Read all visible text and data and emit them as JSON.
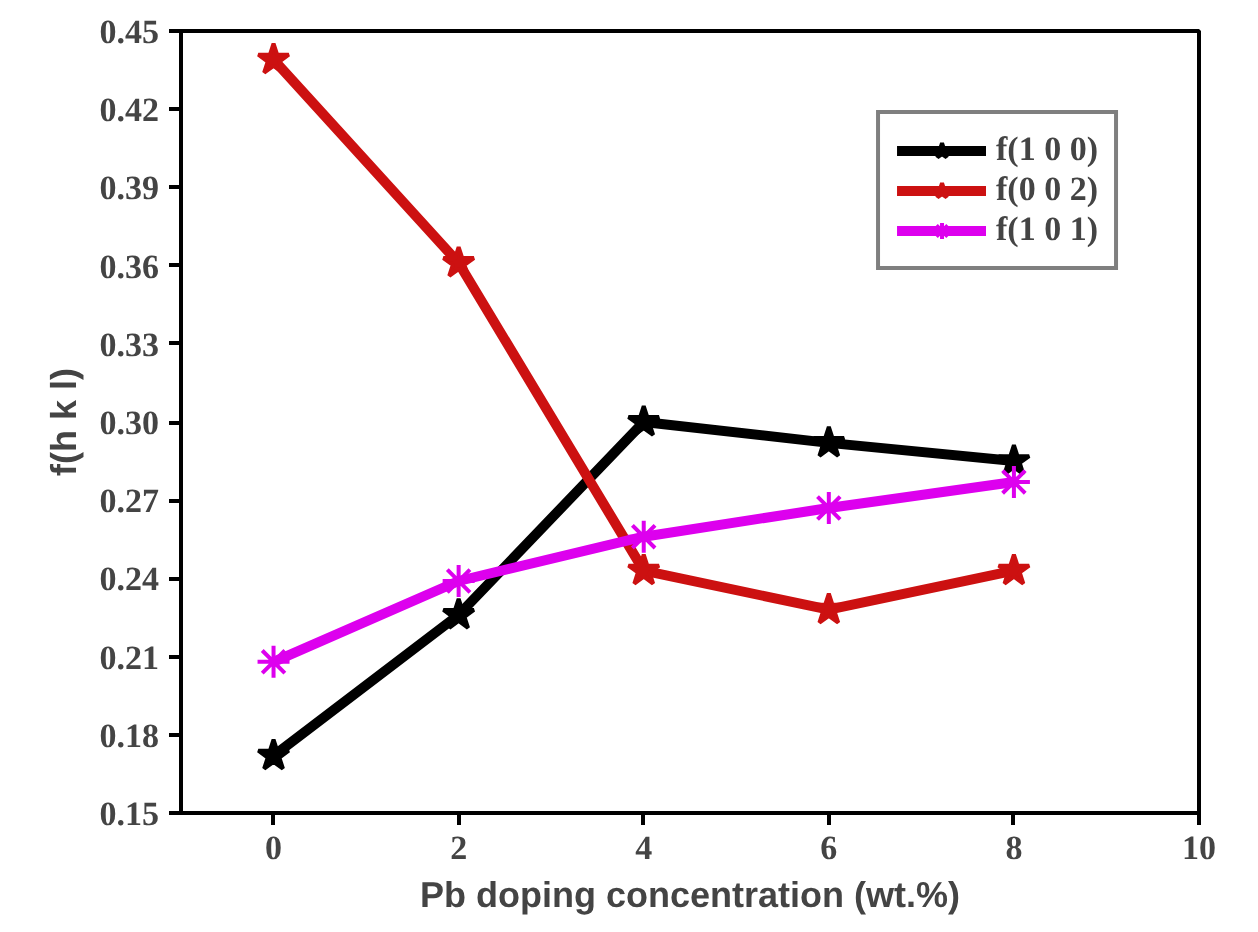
{
  "chart_data": {
    "type": "line",
    "xlabel": "Pb doping concentration (wt.%)",
    "ylabel": "f(h k l)",
    "x": [
      0,
      2,
      4,
      6,
      8
    ],
    "xlim": [
      -1,
      10
    ],
    "xticks": [
      0,
      2,
      4,
      6,
      8,
      10
    ],
    "ylim": [
      0.15,
      0.45
    ],
    "yticks": [
      0.15,
      0.18,
      0.21,
      0.24,
      0.27,
      {
        "value": 0.3,
        "label": "0.30"
      },
      0.33,
      0.36,
      0.39,
      0.42,
      0.45
    ],
    "series": [
      {
        "name": "f(1 0 0)",
        "color": "#000000",
        "marker": "star",
        "values": [
          0.172,
          0.226,
          0.3,
          0.292,
          0.285
        ]
      },
      {
        "name": "f(0 0 2)",
        "color": "#cc1111",
        "marker": "star",
        "values": [
          0.439,
          0.361,
          0.243,
          0.228,
          0.243
        ]
      },
      {
        "name": "f(1 0 1)",
        "color": "#dd00ee",
        "marker": "cross",
        "values": [
          0.208,
          0.239,
          0.256,
          0.267,
          0.277
        ]
      }
    ],
    "grid": false,
    "legend": "top right",
    "line_style": "solid"
  }
}
